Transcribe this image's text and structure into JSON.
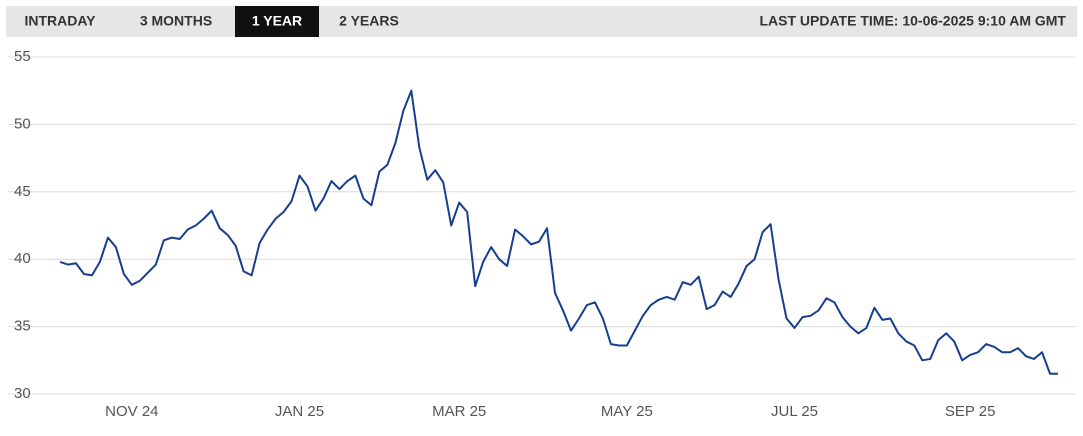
{
  "tabs": [
    "INTRADAY",
    "3 MONTHS",
    "1 YEAR",
    "2 YEARS"
  ],
  "last_update": "LAST UPDATE TIME: 10-06-2025 9:10 AM GMT",
  "chart_data": {
    "type": "line",
    "color": "#173f8e",
    "grid": true,
    "ylim": [
      30,
      55
    ],
    "yticks": [
      30,
      35,
      40,
      45,
      50,
      55
    ],
    "categories": [
      null,
      null,
      null,
      null,
      null,
      null,
      null,
      null,
      null,
      "NOV 24",
      null,
      null,
      null,
      null,
      null,
      null,
      null,
      null,
      null,
      null,
      null,
      null,
      null,
      null,
      null,
      null,
      null,
      null,
      null,
      null,
      "JAN 25",
      null,
      null,
      null,
      null,
      null,
      null,
      null,
      null,
      null,
      null,
      null,
      null,
      null,
      null,
      null,
      null,
      null,
      null,
      null,
      "MAR 25",
      null,
      null,
      null,
      null,
      null,
      null,
      null,
      null,
      null,
      null,
      null,
      null,
      null,
      null,
      null,
      null,
      null,
      null,
      null,
      null,
      "MAY 25",
      null,
      null,
      null,
      null,
      null,
      null,
      null,
      null,
      null,
      null,
      null,
      null,
      null,
      null,
      null,
      null,
      null,
      null,
      null,
      null,
      "JUL 25",
      null,
      null,
      null,
      null,
      null,
      null,
      null,
      null,
      null,
      null,
      null,
      null,
      null,
      null,
      null,
      null,
      null,
      null,
      null,
      null,
      null,
      "SEP 25",
      null,
      null,
      null,
      null,
      null,
      null,
      null,
      null,
      null,
      null,
      null
    ],
    "values": [
      39.8,
      39.6,
      39.7,
      38.9,
      38.8,
      39.8,
      41.6,
      40.9,
      38.9,
      38.1,
      38.4,
      39.0,
      39.6,
      41.4,
      41.6,
      41.5,
      42.2,
      42.5,
      43.0,
      43.6,
      42.3,
      41.8,
      41.0,
      39.1,
      38.8,
      41.2,
      42.2,
      43.0,
      43.5,
      44.3,
      46.2,
      45.4,
      43.6,
      44.5,
      45.8,
      45.2,
      45.8,
      46.2,
      44.5,
      44.0,
      46.5,
      47.0,
      48.6,
      51.0,
      52.5,
      48.3,
      45.9,
      46.6,
      45.7,
      42.5,
      44.2,
      43.5,
      38.0,
      39.8,
      40.9,
      40.0,
      39.5,
      42.2,
      41.7,
      41.1,
      41.3,
      42.3,
      37.5,
      36.2,
      34.7,
      35.6,
      36.6,
      36.8,
      35.6,
      33.7,
      33.6,
      33.6,
      34.7,
      35.8,
      36.6,
      37.0,
      37.2,
      37.0,
      38.3,
      38.1,
      38.7,
      36.3,
      36.6,
      37.6,
      37.2,
      38.2,
      39.5,
      40.0,
      42.0,
      42.6,
      38.5,
      35.6,
      34.9,
      35.7,
      35.8,
      36.2,
      37.1,
      36.8,
      35.7,
      35.0,
      34.5,
      34.9,
      36.4,
      35.5,
      35.6,
      34.5,
      33.9,
      33.6,
      32.5,
      32.6,
      34.0,
      34.5,
      33.9,
      32.5,
      32.9,
      33.1,
      33.7,
      33.5,
      33.1,
      33.1,
      33.4,
      32.8,
      32.6,
      33.1,
      31.5,
      31.5
    ]
  }
}
